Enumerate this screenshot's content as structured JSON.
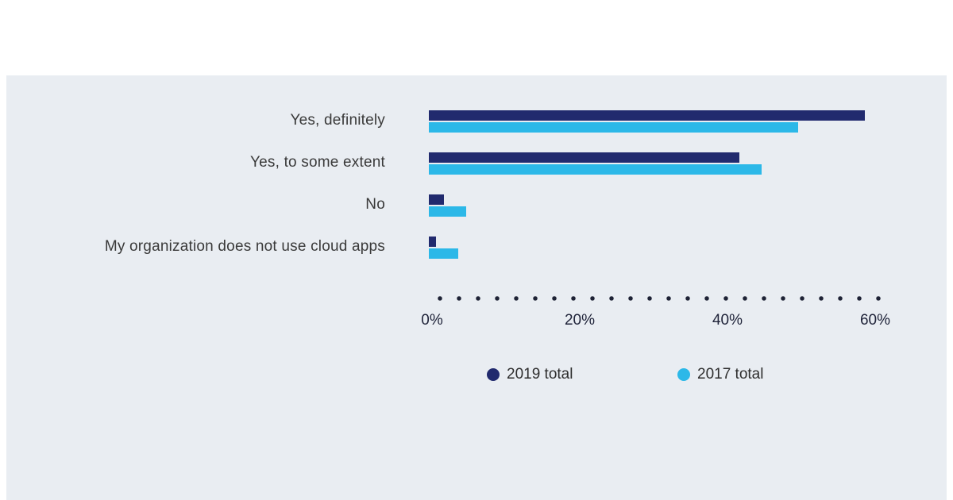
{
  "chart_data": {
    "type": "bar",
    "orientation": "horizontal",
    "title": "",
    "xlabel": "",
    "ylabel": "",
    "categories": [
      "Yes, definitely",
      "Yes, to some extent",
      "No",
      "My organization does not use cloud apps"
    ],
    "series": [
      {
        "name": "2019 total",
        "color": "#212a6e",
        "values": [
          59,
          42,
          2,
          1
        ]
      },
      {
        "name": "2017 total",
        "color": "#2cb8e8",
        "values": [
          50,
          45,
          5,
          4
        ]
      }
    ],
    "x_ticks": [
      "0%",
      "20%",
      "40%",
      "60%"
    ],
    "x_tick_values": [
      0,
      20,
      40,
      60
    ],
    "xlim": [
      0,
      62
    ],
    "grid": false,
    "axis_style": "dotted",
    "legend_position": "bottom"
  },
  "legend": {
    "items": [
      {
        "label": "2019 total",
        "color": "#212a6e"
      },
      {
        "label": "2017 total",
        "color": "#2cb8e8"
      }
    ]
  },
  "colors": {
    "page_bg": "#ffffff",
    "panel_bg": "#e9edf2",
    "series_2019": "#212a6e",
    "series_2017": "#2cb8e8",
    "label_text": "#3a3a3a",
    "tick_text": "#20243a",
    "axis_dots": "#1e2235"
  }
}
